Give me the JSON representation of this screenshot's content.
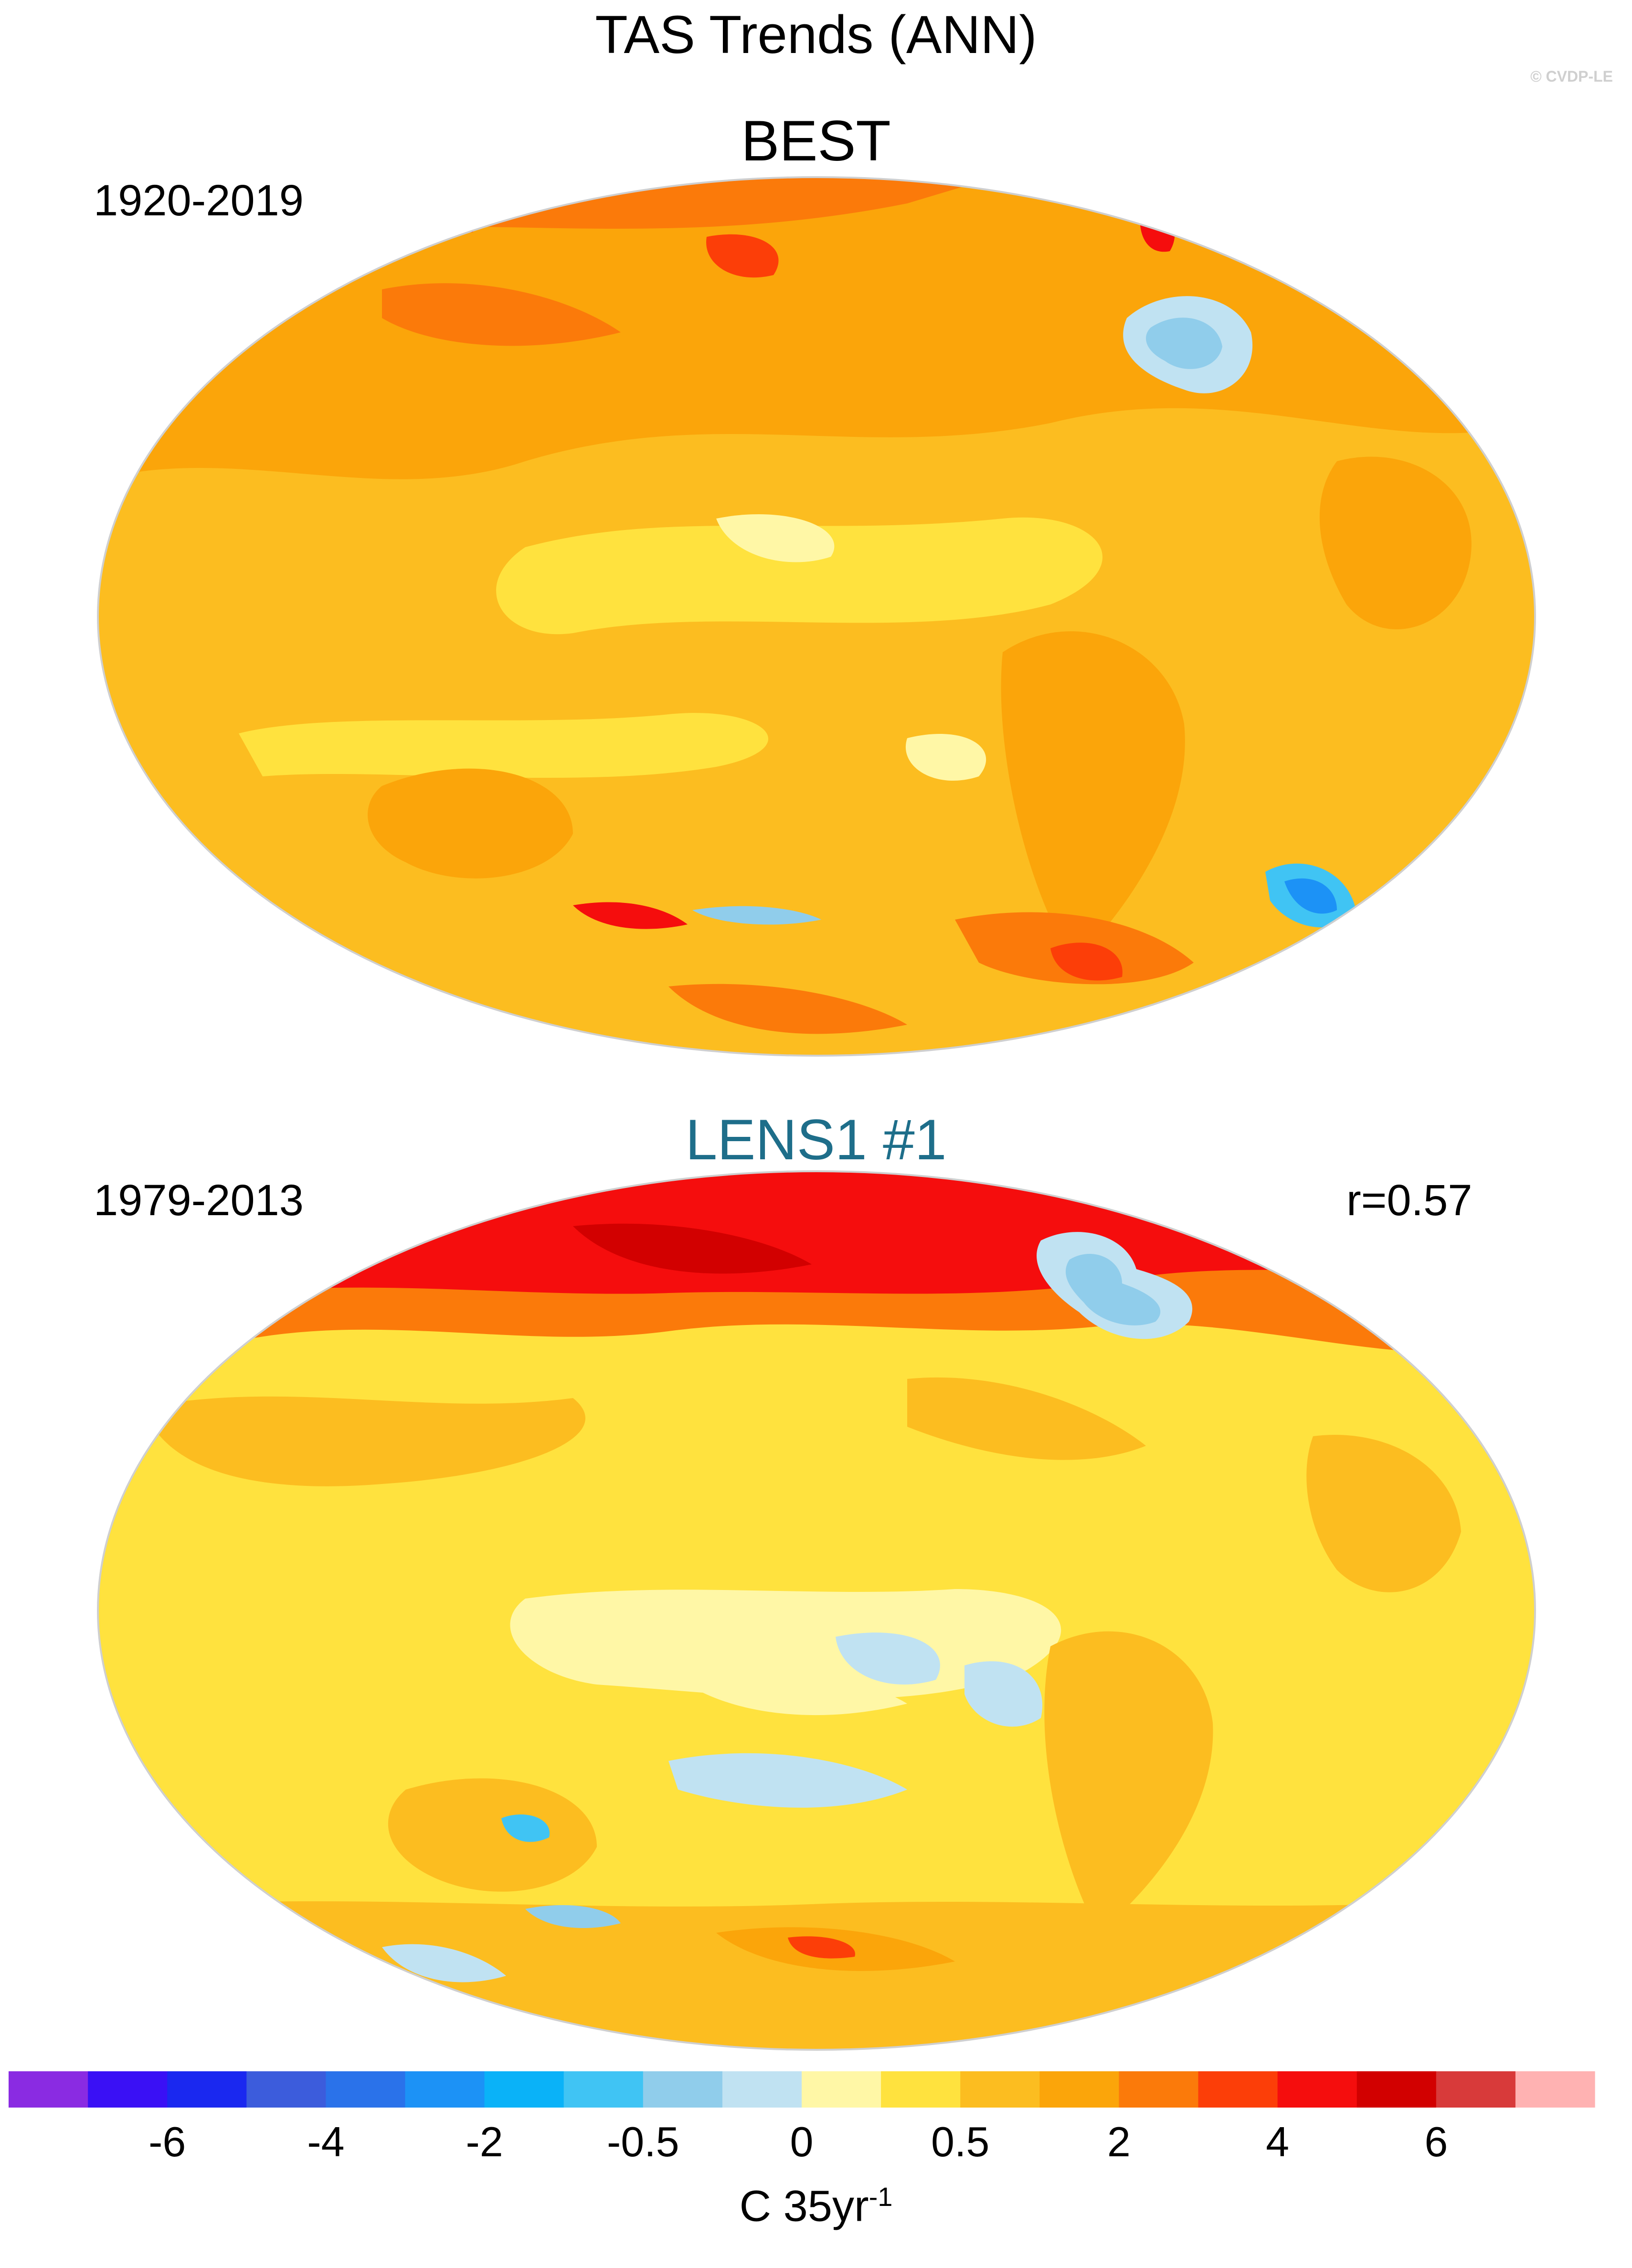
{
  "title": "TAS Trends (ANN)",
  "watermark": "© CVDP-LE",
  "panels": [
    {
      "title": "BEST",
      "period": "1920-2019",
      "stat": ""
    },
    {
      "title": "LENS1 #1",
      "period": "1979-2013",
      "stat": "r=0.57"
    }
  ],
  "colorbar": {
    "unit_main": "C 35yr",
    "unit_sup": "-1",
    "tick_labels": [
      "-6",
      "-4",
      "-2",
      "-0.5",
      "0",
      "0.5",
      "2",
      "4",
      "6"
    ],
    "colors": [
      "#8a2be2",
      "#3a10f5",
      "#1a28f0",
      "#3c5cdc",
      "#2a72ea",
      "#1c92f6",
      "#0ab2f8",
      "#40c4f4",
      "#90cdeb",
      "#c0e2f2",
      "#fff7a6",
      "#ffe23e",
      "#fcbd20",
      "#fba50a",
      "#fb7a0a",
      "#fc3e08",
      "#f50d0d",
      "#d20000",
      "#d83a3a",
      "#ffb2b2"
    ]
  }
}
